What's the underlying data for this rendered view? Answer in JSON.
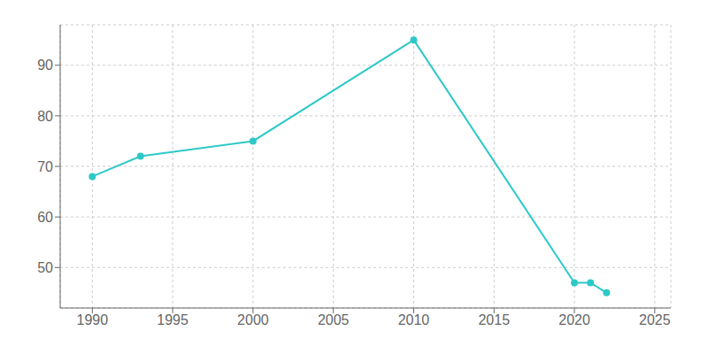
{
  "chart_data": {
    "type": "line",
    "x": [
      1990,
      1993,
      2000,
      2010,
      2020,
      2021,
      2022
    ],
    "values": [
      68,
      72,
      75,
      95,
      47,
      47,
      45
    ],
    "color": "#2ec8c8",
    "marker": "circle",
    "xlim": [
      1988,
      2026
    ],
    "ylim": [
      42,
      98
    ],
    "xticks": [
      1990,
      1995,
      2000,
      2005,
      2010,
      2015,
      2020,
      2025
    ],
    "yticks": [
      50,
      60,
      70,
      80,
      90
    ],
    "grid": true
  }
}
